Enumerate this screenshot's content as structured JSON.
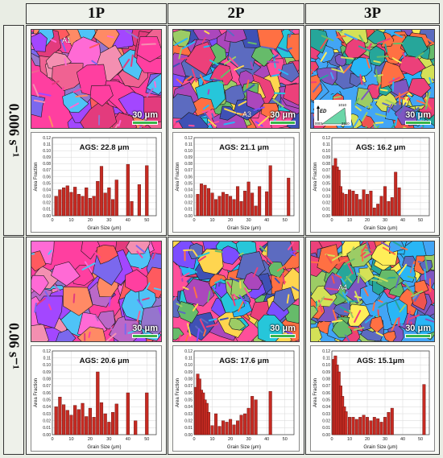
{
  "columns": [
    "1P",
    "2P",
    "3P"
  ],
  "rows": [
    "0.006 s⁻¹",
    "0.06 s⁻¹"
  ],
  "scale_label": "30 μm",
  "region_labels": [
    "A1",
    "A3",
    "A4"
  ],
  "legend": {
    "label": "ED",
    "corner_top": "1010",
    "corner_left": "0001",
    "corner_right": "2110"
  },
  "colors": {
    "bar": "#c62a22",
    "bar_edge": "#5a0e0a"
  },
  "chart_data": [
    {
      "type": "bar",
      "panel": "0.006-1P",
      "annotation": "AGS: 22.8 μm",
      "xlabel": "Grain Size (μm)",
      "ylabel": "Area Fraction",
      "xlim": [
        0,
        55
      ],
      "ylim": [
        0,
        0.12
      ],
      "xticks": [
        0,
        10,
        20,
        30,
        40,
        50
      ],
      "yticks": [
        0,
        0.01,
        0.02,
        0.03,
        0.04,
        0.05,
        0.06,
        0.07,
        0.08,
        0.09,
        0.1,
        0.11,
        0.12
      ],
      "x": [
        2,
        4,
        6,
        8,
        10,
        12,
        14,
        16,
        18,
        20,
        22,
        24,
        26,
        28,
        30,
        32,
        34,
        40,
        42,
        46,
        50
      ],
      "values": [
        0.03,
        0.04,
        0.043,
        0.046,
        0.036,
        0.044,
        0.033,
        0.03,
        0.043,
        0.027,
        0.03,
        0.053,
        0.076,
        0.035,
        0.043,
        0.025,
        0.055,
        0.079,
        0.022,
        0.048,
        0.077
      ]
    },
    {
      "type": "bar",
      "panel": "0.006-2P",
      "annotation": "AGS: 21.1 μm",
      "xlabel": "Grain Size (μm)",
      "ylabel": "Area Fraction",
      "xlim": [
        0,
        55
      ],
      "ylim": [
        0,
        0.12
      ],
      "xticks": [
        0,
        10,
        20,
        30,
        40,
        50
      ],
      "yticks": [
        0,
        0.01,
        0.02,
        0.03,
        0.04,
        0.05,
        0.06,
        0.07,
        0.08,
        0.09,
        0.1,
        0.11,
        0.12
      ],
      "x": [
        2,
        4,
        6,
        8,
        10,
        12,
        14,
        16,
        18,
        20,
        22,
        24,
        26,
        28,
        30,
        32,
        34,
        36,
        40,
        42,
        52
      ],
      "values": [
        0.033,
        0.049,
        0.047,
        0.042,
        0.035,
        0.025,
        0.03,
        0.036,
        0.033,
        0.03,
        0.025,
        0.045,
        0.022,
        0.038,
        0.052,
        0.035,
        0.015,
        0.045,
        0.037,
        0.077,
        0.058
      ]
    },
    {
      "type": "bar",
      "panel": "0.006-3P",
      "annotation": "AGS: 16.2 μm",
      "xlabel": "Grain Size (μm)",
      "ylabel": "Area Fraction",
      "xlim": [
        0,
        55
      ],
      "ylim": [
        0,
        0.12
      ],
      "xticks": [
        0,
        10,
        20,
        30,
        40,
        50
      ],
      "yticks": [
        0,
        0.01,
        0.02,
        0.03,
        0.04,
        0.05,
        0.06,
        0.07,
        0.08,
        0.09,
        0.1,
        0.11,
        0.12
      ],
      "x": [
        1,
        2,
        3,
        4,
        5,
        6,
        8,
        10,
        12,
        14,
        16,
        18,
        20,
        22,
        24,
        26,
        28,
        30,
        32,
        34,
        36,
        38
      ],
      "values": [
        0.077,
        0.088,
        0.075,
        0.07,
        0.045,
        0.035,
        0.033,
        0.04,
        0.038,
        0.033,
        0.025,
        0.04,
        0.033,
        0.038,
        0.012,
        0.018,
        0.03,
        0.045,
        0.022,
        0.028,
        0.067,
        0.043
      ]
    },
    {
      "type": "bar",
      "panel": "0.06-1P",
      "annotation": "AGS: 20.6 μm",
      "xlabel": "Grain Size (μm)",
      "ylabel": "Area Fraction",
      "xlim": [
        0,
        55
      ],
      "ylim": [
        0,
        0.12
      ],
      "xticks": [
        0,
        10,
        20,
        30,
        40,
        50
      ],
      "yticks": [
        0,
        0.01,
        0.02,
        0.03,
        0.04,
        0.05,
        0.06,
        0.07,
        0.08,
        0.09,
        0.1,
        0.11,
        0.12
      ],
      "x": [
        2,
        4,
        6,
        8,
        10,
        12,
        14,
        16,
        18,
        20,
        22,
        24,
        26,
        28,
        30,
        32,
        34,
        40,
        44,
        50
      ],
      "values": [
        0.04,
        0.054,
        0.043,
        0.035,
        0.028,
        0.042,
        0.036,
        0.045,
        0.026,
        0.038,
        0.025,
        0.09,
        0.046,
        0.03,
        0.018,
        0.032,
        0.044,
        0.06,
        0.02,
        0.06
      ]
    },
    {
      "type": "bar",
      "panel": "0.06-2P",
      "annotation": "AGS: 17.6 μm",
      "xlabel": "Grain Size (μm)",
      "ylabel": "Area Fraction",
      "xlim": [
        0,
        55
      ],
      "ylim": [
        0,
        0.12
      ],
      "xticks": [
        0,
        10,
        20,
        30,
        40,
        50
      ],
      "yticks": [
        0,
        0.01,
        0.02,
        0.03,
        0.04,
        0.05,
        0.06,
        0.07,
        0.08,
        0.09,
        0.1,
        0.11,
        0.12
      ],
      "x": [
        1,
        2,
        3,
        4,
        5,
        6,
        7,
        8,
        10,
        12,
        14,
        16,
        18,
        20,
        22,
        24,
        26,
        28,
        30,
        32,
        34,
        42
      ],
      "values": [
        0.068,
        0.087,
        0.08,
        0.064,
        0.06,
        0.05,
        0.045,
        0.032,
        0.013,
        0.03,
        0.012,
        0.02,
        0.018,
        0.022,
        0.014,
        0.02,
        0.028,
        0.03,
        0.038,
        0.055,
        0.05,
        0.062
      ]
    },
    {
      "type": "bar",
      "panel": "0.06-3P",
      "annotation": "AGS: 15.1μm",
      "xlabel": "Grain Size (μm)",
      "ylabel": "Area Fraction",
      "xlim": [
        0,
        55
      ],
      "ylim": [
        0,
        0.12
      ],
      "xticks": [
        0,
        10,
        20,
        30,
        40,
        50
      ],
      "yticks": [
        0,
        0.01,
        0.02,
        0.03,
        0.04,
        0.05,
        0.06,
        0.07,
        0.08,
        0.09,
        0.1,
        0.11,
        0.12
      ],
      "x": [
        1,
        2,
        3,
        4,
        5,
        6,
        7,
        8,
        10,
        12,
        14,
        16,
        18,
        20,
        22,
        24,
        26,
        28,
        30,
        32,
        34,
        52
      ],
      "values": [
        0.108,
        0.113,
        0.1,
        0.09,
        0.07,
        0.055,
        0.04,
        0.033,
        0.025,
        0.025,
        0.022,
        0.025,
        0.028,
        0.025,
        0.02,
        0.025,
        0.023,
        0.018,
        0.025,
        0.032,
        0.038,
        0.072
      ]
    }
  ]
}
